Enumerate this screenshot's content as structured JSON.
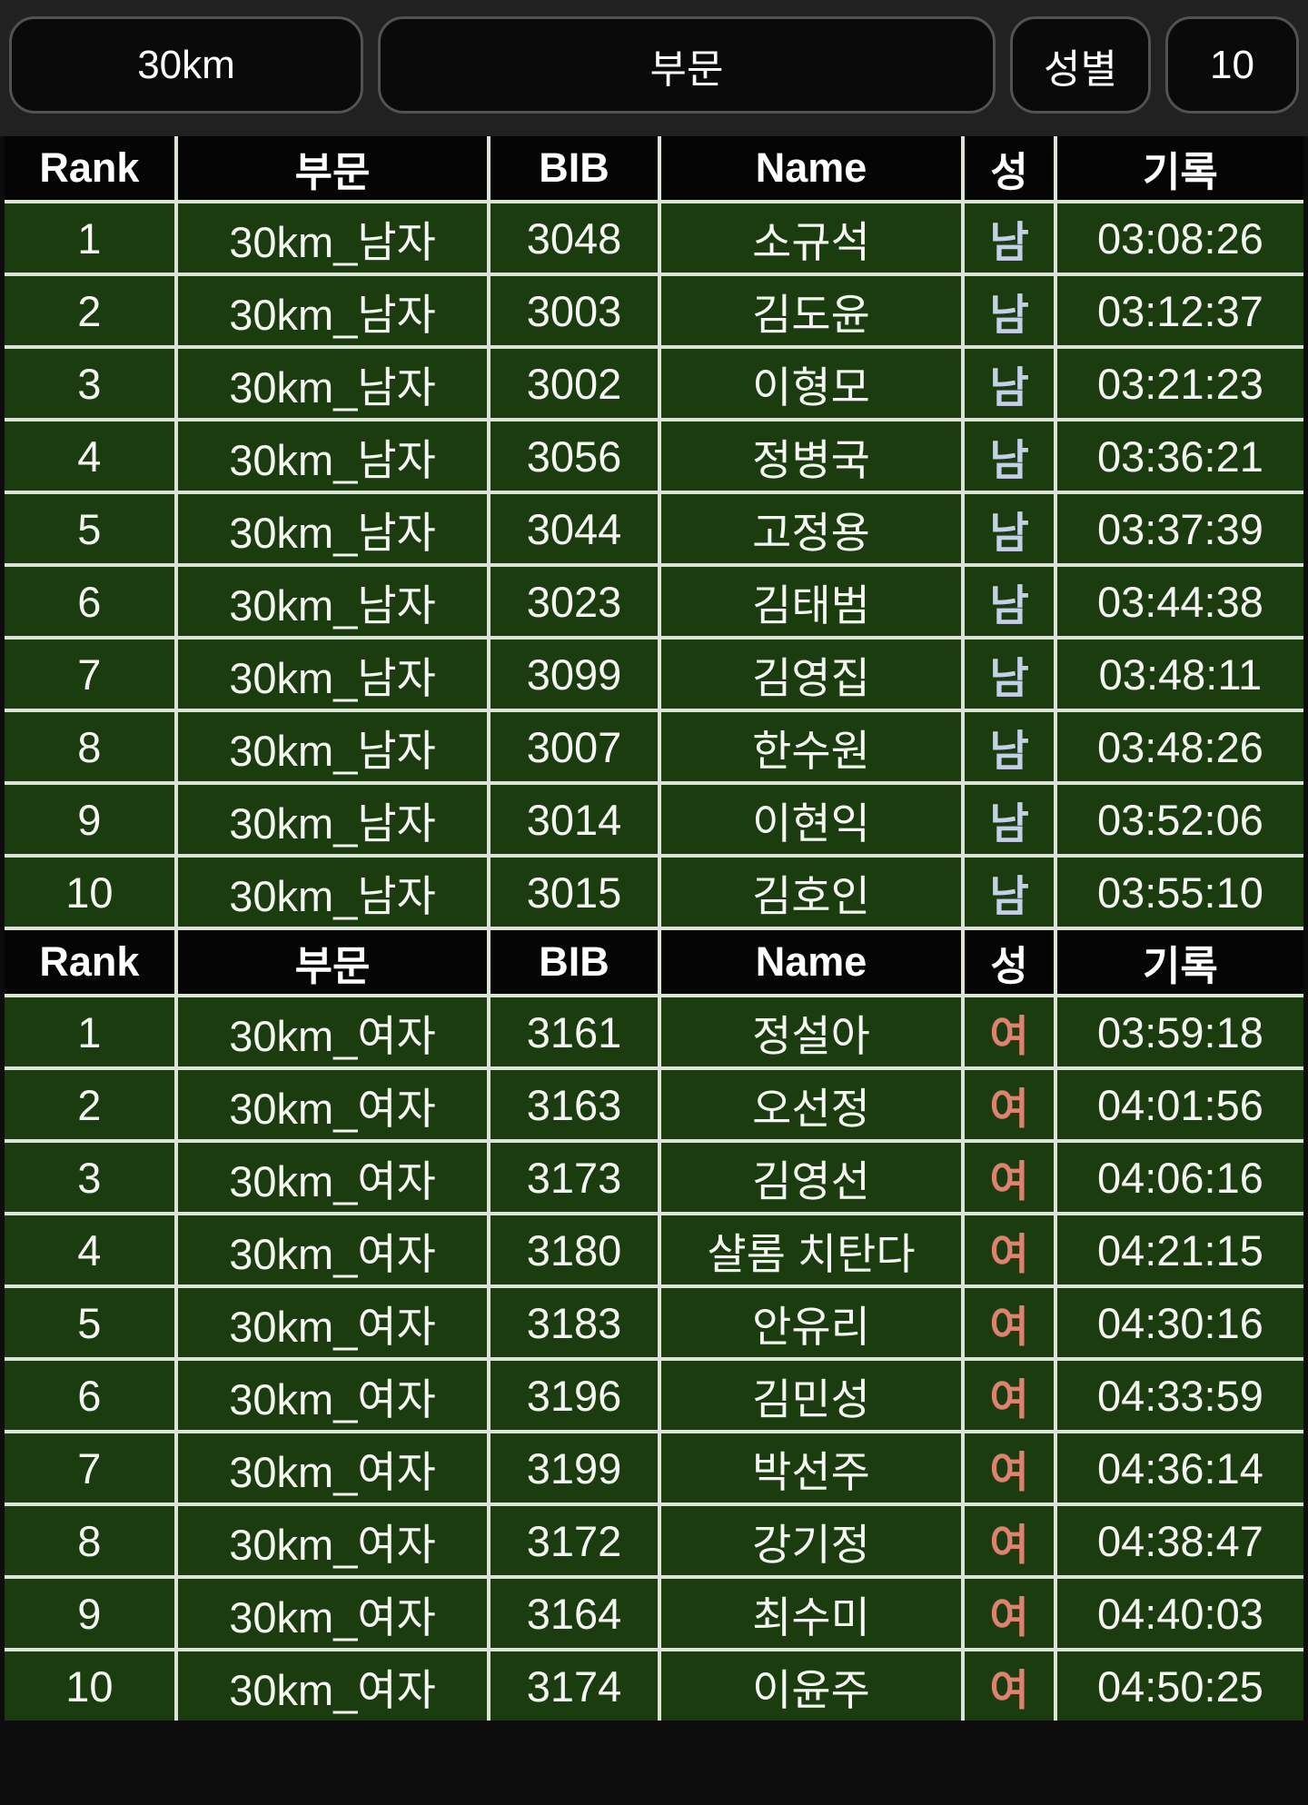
{
  "filters": {
    "distance_label": "30km",
    "category_label": "부문",
    "gender_label": "성별",
    "count_label": "10"
  },
  "table": {
    "columns": [
      "Rank",
      "부문",
      "BIB",
      "Name",
      "성",
      "기록"
    ],
    "sections": [
      {
        "rows": [
          [
            "1",
            "30km_남자",
            "3048",
            "소규석",
            "남",
            "03:08:26"
          ],
          [
            "2",
            "30km_남자",
            "3003",
            "김도윤",
            "남",
            "03:12:37"
          ],
          [
            "3",
            "30km_남자",
            "3002",
            "이형모",
            "남",
            "03:21:23"
          ],
          [
            "4",
            "30km_남자",
            "3056",
            "정병국",
            "남",
            "03:36:21"
          ],
          [
            "5",
            "30km_남자",
            "3044",
            "고정용",
            "남",
            "03:37:39"
          ],
          [
            "6",
            "30km_남자",
            "3023",
            "김태범",
            "남",
            "03:44:38"
          ],
          [
            "7",
            "30km_남자",
            "3099",
            "김영집",
            "남",
            "03:48:11"
          ],
          [
            "8",
            "30km_남자",
            "3007",
            "한수원",
            "남",
            "03:48:26"
          ],
          [
            "9",
            "30km_남자",
            "3014",
            "이현익",
            "남",
            "03:52:06"
          ],
          [
            "10",
            "30km_남자",
            "3015",
            "김호인",
            "남",
            "03:55:10"
          ]
        ]
      },
      {
        "rows": [
          [
            "1",
            "30km_여자",
            "3161",
            "정설아",
            "여",
            "03:59:18"
          ],
          [
            "2",
            "30km_여자",
            "3163",
            "오선정",
            "여",
            "04:01:56"
          ],
          [
            "3",
            "30km_여자",
            "3173",
            "김영선",
            "여",
            "04:06:16"
          ],
          [
            "4",
            "30km_여자",
            "3180",
            "샬롬 치탄다",
            "여",
            "04:21:15"
          ],
          [
            "5",
            "30km_여자",
            "3183",
            "안유리",
            "여",
            "04:30:16"
          ],
          [
            "6",
            "30km_여자",
            "3196",
            "김민성",
            "여",
            "04:33:59"
          ],
          [
            "7",
            "30km_여자",
            "3199",
            "박선주",
            "여",
            "04:36:14"
          ],
          [
            "8",
            "30km_여자",
            "3172",
            "강기정",
            "여",
            "04:38:47"
          ],
          [
            "9",
            "30km_여자",
            "3164",
            "최수미",
            "여",
            "04:40:03"
          ],
          [
            "10",
            "30km_여자",
            "3174",
            "이윤주",
            "여",
            "04:50:25"
          ]
        ]
      }
    ]
  },
  "colors": {
    "male_text": "#c4cfe9",
    "female_text": "#dd8270",
    "row_bg": "#1b3c0e",
    "header_bg": "#050505",
    "grid_line": "#dce3d7",
    "button_border": "#525252",
    "topbar_bg": "#212121"
  }
}
